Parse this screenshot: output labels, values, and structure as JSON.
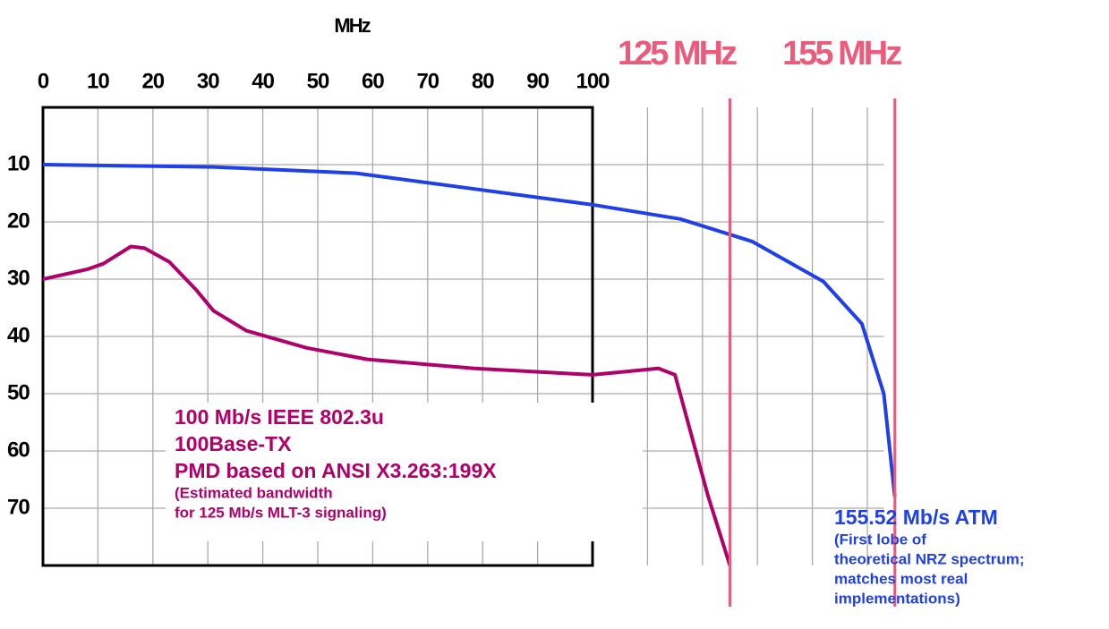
{
  "chart_data": {
    "type": "line",
    "xlabel": "MHz",
    "xlim": [
      0,
      153
    ],
    "ylim": [
      0,
      80
    ],
    "xticks": [
      0,
      10,
      20,
      30,
      40,
      50,
      60,
      70,
      80,
      90,
      100
    ],
    "yticks": [
      10,
      20,
      30,
      40,
      50,
      60,
      70
    ],
    "grid": true,
    "series": [
      {
        "color": "#1f3fe8",
        "x": [
          0,
          31,
          57,
          100,
          116,
          129,
          142,
          149,
          153,
          155
        ],
        "values": [
          10,
          10.4,
          11.5,
          17,
          19.5,
          23.4,
          30.4,
          37.8,
          50,
          68
        ]
      },
      {
        "color": "#b0006a",
        "x": [
          0,
          8,
          11,
          16,
          18.5,
          23,
          28,
          31,
          37,
          48,
          59,
          78.5,
          100,
          112,
          115,
          121,
          125
        ],
        "values": [
          30,
          28.3,
          27.3,
          24.3,
          24.6,
          27,
          32,
          35.5,
          39,
          42,
          44,
          45.6,
          46.7,
          45.6,
          46.7,
          67.8,
          80
        ]
      }
    ],
    "markers": [
      {
        "x": 125,
        "label": "125 MHz",
        "color": "#ea5b7c"
      },
      {
        "x": 155,
        "label": "155 MHz",
        "color": "#ea5b7c"
      }
    ],
    "annotations": [
      {
        "color": "#b0006a",
        "lines": [
          "100 Mb/s IEEE 802.3u",
          "100Base-TX",
          "PMD based on ANSI X3.263:199X"
        ],
        "notes": [
          "(Estimated bandwidth",
          "for 125 Mb/s MLT-3 signaling)"
        ]
      },
      {
        "color": "#1f3fe8",
        "lines": [
          "155.52 Mb/s ATM"
        ],
        "notes": [
          "(First lobe of",
          "theoretical NRZ spectrum;",
          "matches most real",
          "implementations)"
        ]
      }
    ]
  }
}
